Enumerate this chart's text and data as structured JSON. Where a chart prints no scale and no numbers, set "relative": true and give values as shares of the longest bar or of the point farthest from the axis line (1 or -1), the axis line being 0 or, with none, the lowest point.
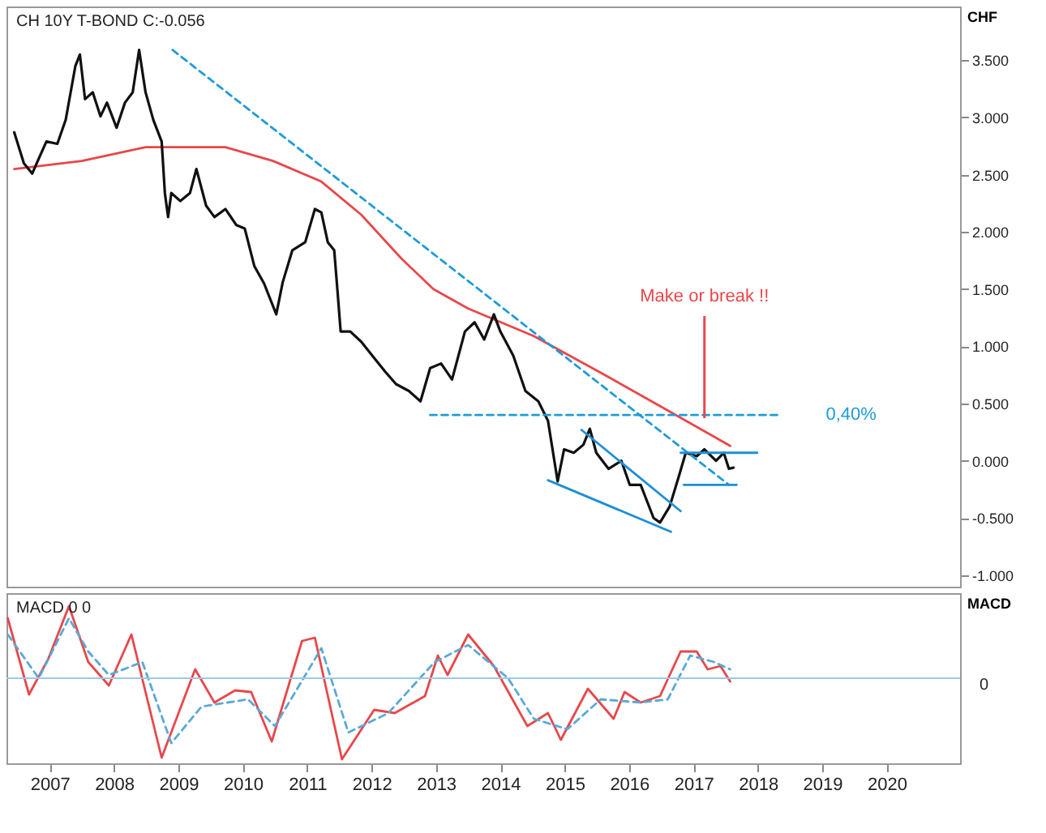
{
  "chart_data": [
    {
      "type": "line",
      "title": "CH 10Y T-BOND C:-0.056",
      "ylabel": "CHF",
      "xlim": [
        2006.33,
        2021.14
      ],
      "ylim": [
        -1.1,
        3.97
      ],
      "yticks": [
        {
          "value": -1,
          "label": "-1.000"
        },
        {
          "value": -0.5,
          "label": "-0.500"
        },
        {
          "value": 0,
          "label": "0.000"
        },
        {
          "value": 0.5,
          "label": "0.500"
        },
        {
          "value": 1,
          "label": "1.000"
        },
        {
          "value": 1.5,
          "label": "1.500"
        },
        {
          "value": 2,
          "label": "2.000"
        },
        {
          "value": 2.5,
          "label": "2.500"
        },
        {
          "value": 3,
          "label": "3.000"
        },
        {
          "value": 3.5,
          "label": "3.500"
        }
      ],
      "tick_labels": "y",
      "grid": false,
      "legend": false,
      "series": [
        {
          "color": "#e8474a",
          "x": [
            2006.45,
            2007.5,
            2008.49,
            2009.73,
            2010.47,
            2011.22,
            2011.84,
            2012.46,
            2012.96,
            2013.5,
            2014.52,
            2015.56,
            2016.6,
            2017.57
          ],
          "values": [
            2.55,
            2.62,
            2.74,
            2.74,
            2.62,
            2.44,
            2.15,
            1.77,
            1.5,
            1.33,
            1.09,
            0.77,
            0.44,
            0.13
          ]
        },
        {
          "color": "#111111",
          "x": [
            2006.45,
            2006.6,
            2006.73,
            2006.8,
            2006.95,
            2007.12,
            2007.25,
            2007.4,
            2007.47,
            2007.55,
            2007.67,
            2007.79,
            2007.89,
            2008.04,
            2008.17,
            2008.29,
            2008.39,
            2008.49,
            2008.61,
            2008.74,
            2008.79,
            2008.84,
            2008.89,
            2009.03,
            2009.18,
            2009.28,
            2009.43,
            2009.56,
            2009.73,
            2009.9,
            2010.03,
            2010.18,
            2010.33,
            2010.52,
            2010.62,
            2010.77,
            2010.97,
            2011.12,
            2011.22,
            2011.32,
            2011.42,
            2011.47,
            2011.52,
            2011.67,
            2011.84,
            2012.01,
            2012.21,
            2012.38,
            2012.58,
            2012.76,
            2012.91,
            2013.08,
            2013.25,
            2013.45,
            2013.6,
            2013.75,
            2013.9,
            2014.0,
            2014.2,
            2014.39,
            2014.59,
            2014.74,
            2014.89,
            2014.99,
            2015.14,
            2015.29,
            2015.39,
            2015.49,
            2015.68,
            2015.88,
            2016.01,
            2016.18,
            2016.38,
            2016.48,
            2016.63,
            2016.77,
            2016.88,
            2017.05,
            2017.17,
            2017.35,
            2017.47,
            2017.55,
            2017.62
          ],
          "values": [
            2.87,
            2.6,
            2.51,
            2.6,
            2.79,
            2.77,
            2.98,
            3.45,
            3.55,
            3.16,
            3.22,
            3.01,
            3.13,
            2.91,
            3.13,
            3.22,
            3.59,
            3.22,
            2.98,
            2.79,
            2.34,
            2.13,
            2.34,
            2.27,
            2.34,
            2.55,
            2.23,
            2.13,
            2.2,
            2.06,
            2.03,
            1.7,
            1.55,
            1.28,
            1.56,
            1.84,
            1.91,
            2.2,
            2.17,
            1.91,
            1.84,
            1.49,
            1.13,
            1.13,
            1.04,
            0.92,
            0.78,
            0.67,
            0.61,
            0.52,
            0.81,
            0.85,
            0.71,
            1.13,
            1.21,
            1.06,
            1.28,
            1.13,
            0.92,
            0.61,
            0.52,
            0.35,
            -0.18,
            0.1,
            0.07,
            0.14,
            0.28,
            0.07,
            -0.07,
            0.0,
            -0.21,
            -0.21,
            -0.5,
            -0.54,
            -0.4,
            -0.14,
            0.07,
            0.04,
            0.1,
            0.0,
            0.07,
            -0.07,
            -0.06
          ]
        },
        {
          "color": "#1f9bd7",
          "line_style": "dashed",
          "x": [
            2008.91,
            2017.55
          ],
          "values": [
            3.59,
            -0.21
          ]
        },
        {
          "name": "0,40%",
          "color": "#1f9bd7",
          "line_style": "dashed",
          "x": [
            2012.91,
            2018.3
          ],
          "values": [
            0.4,
            0.4
          ]
        },
        {
          "color": "#1f8fd6",
          "x": [
            2014.74,
            2016.65
          ],
          "values": [
            -0.17,
            -0.62
          ]
        },
        {
          "color": "#1f8fd6",
          "x": [
            2015.26,
            2016.8
          ],
          "values": [
            0.27,
            -0.44
          ]
        },
        {
          "color": "#1f8fd6",
          "x": [
            2016.8,
            2017.99
          ],
          "values": [
            0.07,
            0.07
          ]
        },
        {
          "color": "#1f8fd6",
          "x": [
            2016.85,
            2017.67
          ],
          "values": [
            -0.21,
            -0.21
          ]
        }
      ],
      "annotations": [
        {
          "text": "Make or break !!",
          "x": 2017.17,
          "y": 0.33
        }
      ]
    },
    {
      "type": "line",
      "title": "MACD 0 0",
      "ylabel": "MACD",
      "relative": true,
      "xlim": [
        2006.33,
        2021.14
      ],
      "xticks": [
        2007,
        2008,
        2009,
        2010,
        2011,
        2012,
        2013,
        2014,
        2015,
        2016,
        2017,
        2018,
        2019,
        2020
      ],
      "tick_labels": "x",
      "grid": false,
      "legend": false,
      "ref_lines": [
        {
          "axis": "y",
          "value": 0,
          "label": "0",
          "color": "#9cc9e6"
        }
      ],
      "series": [
        {
          "color": "#e8474a",
          "x": [
            2006.35,
            2006.68,
            2006.98,
            2007.3,
            2007.6,
            2007.92,
            2008.27,
            2008.74,
            2009.26,
            2009.56,
            2009.88,
            2010.13,
            2010.45,
            2010.92,
            2011.12,
            2011.54,
            2012.04,
            2012.36,
            2012.83,
            2013.03,
            2013.18,
            2013.5,
            2013.9,
            2014.42,
            2014.74,
            2014.94,
            2015.36,
            2015.76,
            2015.93,
            2016.18,
            2016.48,
            2016.8,
            2017.05,
            2017.22,
            2017.42,
            2017.57
          ],
          "values": [
            0.74,
            -0.2,
            0.24,
            0.89,
            0.2,
            -0.09,
            0.54,
            -0.98,
            0.11,
            -0.3,
            -0.15,
            -0.17,
            -0.78,
            0.46,
            0.5,
            -1,
            -0.39,
            -0.43,
            -0.22,
            0.28,
            0.04,
            0.54,
            0.15,
            -0.59,
            -0.43,
            -0.76,
            -0.13,
            -0.5,
            -0.17,
            -0.3,
            -0.22,
            0.33,
            0.33,
            0.11,
            0.15,
            -0.04
          ]
        },
        {
          "color": "#5aa9d6",
          "line_style": "dashed",
          "x": [
            2006.35,
            2006.83,
            2007.3,
            2007.6,
            2007.92,
            2008.44,
            2008.89,
            2009.36,
            2010.08,
            2010.5,
            2011.22,
            2011.64,
            2012.26,
            2012.98,
            2013.5,
            2014.12,
            2014.52,
            2015.04,
            2015.56,
            2016.18,
            2016.6,
            2016.95,
            2017.32,
            2017.57
          ],
          "values": [
            0.54,
            0.0,
            0.74,
            0.33,
            0.04,
            0.2,
            -0.8,
            -0.35,
            -0.26,
            -0.59,
            0.37,
            -0.67,
            -0.43,
            0.2,
            0.41,
            0.0,
            -0.5,
            -0.63,
            -0.26,
            -0.3,
            -0.26,
            0.28,
            0.2,
            0.11
          ]
        }
      ]
    }
  ]
}
